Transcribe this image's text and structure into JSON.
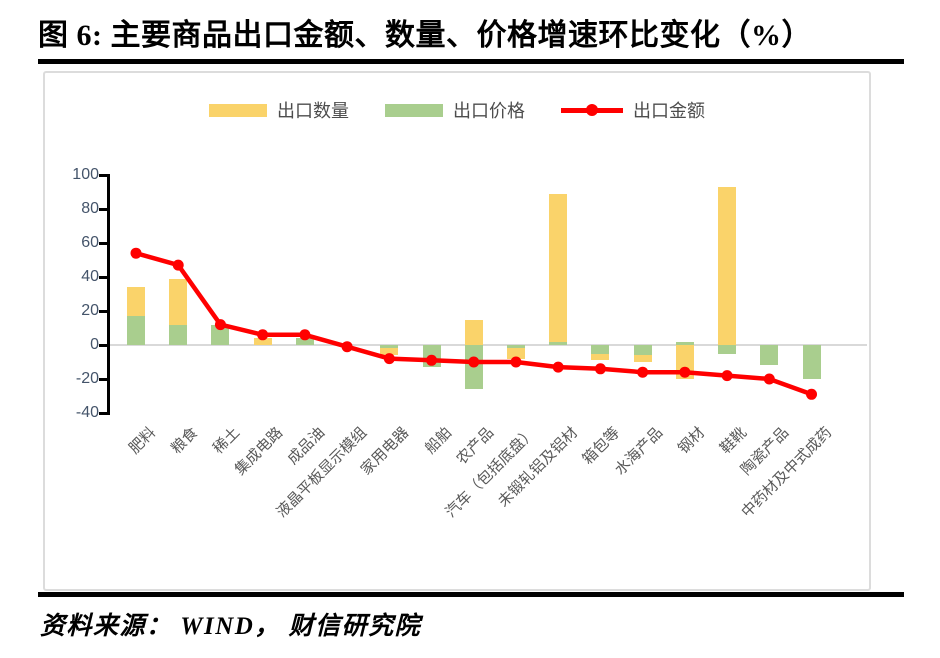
{
  "figure": {
    "title": "图 6: 主要商品出口金额、数量、价格增速环比变化（%）",
    "source": "资料来源： WIND， 财信研究院"
  },
  "legend": {
    "items": [
      {
        "label": "出口数量",
        "marker": "bar",
        "color": "#FAD36A"
      },
      {
        "label": "出口价格",
        "marker": "bar",
        "color": "#A9CE8E"
      },
      {
        "label": "出口金额",
        "marker": "line",
        "color": "#FF0000"
      }
    ]
  },
  "colors": {
    "quantity_bar": "#FAD36A",
    "price_bar": "#A9CE8E",
    "amount_line": "#FF0000",
    "gridline": "#D9D9D9",
    "axis": "#000000",
    "y_tick_label": "#44546A",
    "x_tick_label": "#595959"
  },
  "chart_data": {
    "type": "bar",
    "subtype": "overlapped bars + line overlay",
    "title": "主要商品出口金额、数量、价格增速环比变化（%）",
    "xlabel": "",
    "ylabel": "",
    "unit": "%",
    "ylim": [
      -40,
      100
    ],
    "yticks": [
      100,
      80,
      60,
      40,
      20,
      0,
      -20,
      -40
    ],
    "grid": "zero-line-only",
    "legend_position": "top",
    "categories": [
      "肥料",
      "粮食",
      "稀土",
      "集成电路",
      "成品油",
      "液晶平板显示模组",
      "家用电器",
      "船舶",
      "农产品",
      "汽车（包括底盘）",
      "未锻轧铝及铝材",
      "箱包等",
      "水海产品",
      "钢材",
      "鞋靴",
      "陶瓷产品",
      "中药材及中式成药"
    ],
    "series": [
      {
        "name": "出口数量",
        "type": "bar",
        "color": "#FAD36A",
        "values": [
          34,
          39,
          0,
          4,
          0,
          0,
          -6,
          0,
          15,
          -8,
          89,
          -9,
          -10,
          -20,
          93,
          0,
          0
        ]
      },
      {
        "name": "出口价格",
        "type": "bar",
        "color": "#A9CE8E",
        "values": [
          17,
          12,
          12,
          0,
          4,
          0,
          -2,
          -13,
          -26,
          -2,
          2,
          -5,
          -6,
          2,
          -5,
          -12,
          -20
        ]
      },
      {
        "name": "出口金额",
        "type": "line",
        "color": "#FF0000",
        "values": [
          54,
          47,
          12,
          6,
          6,
          -1,
          -8,
          -9,
          -10,
          -10,
          -13,
          -14,
          -16,
          -16,
          -18,
          -20,
          -29
        ]
      }
    ]
  }
}
